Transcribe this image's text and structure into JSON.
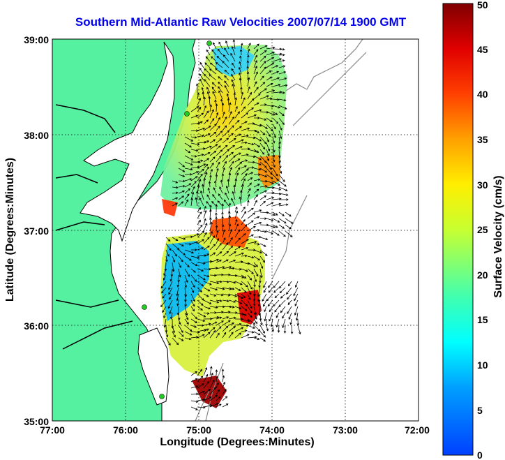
{
  "title": "Southern Mid-Atlantic Raw Velocities 2007/07/14 1900 GMT",
  "xlabel": "Longitude (Degrees:Minutes)",
  "ylabel": "Latitude (Degrees:Minutes)",
  "x_ticks": [
    "77:00",
    "76:00",
    "75:00",
    "74:00",
    "73:00",
    "72:00"
  ],
  "y_ticks": [
    "39:00",
    "38:00",
    "37:00",
    "36:00",
    "35:00"
  ],
  "colorbar": {
    "label": "Surface Velocity (cm/s)",
    "ticks": [
      "0",
      "5",
      "10",
      "15",
      "20",
      "25",
      "30",
      "35",
      "40",
      "45",
      "50"
    ]
  },
  "colors": {
    "land": "#55f0a0",
    "title": "#0000ee",
    "station": "#22cc22"
  }
}
